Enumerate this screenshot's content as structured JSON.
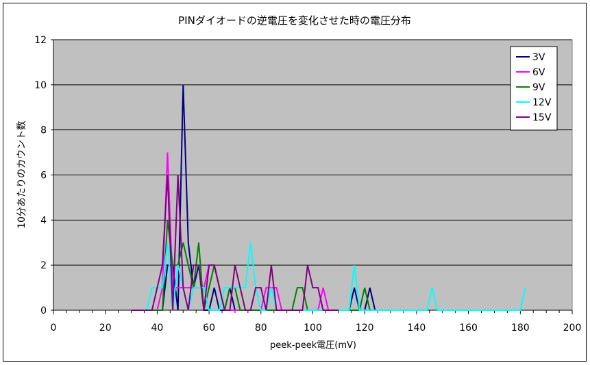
{
  "chart_data": {
    "type": "line",
    "title": "PINダイオードの逆電圧を変化させた時の電圧分布",
    "xlabel": "peek-peek電圧(mV)",
    "ylabel": "10分あたりのカウント数",
    "xlim": [
      0,
      200
    ],
    "ylim": [
      0,
      12
    ],
    "xticks": [
      0,
      20,
      40,
      60,
      80,
      100,
      120,
      140,
      160,
      180,
      200
    ],
    "yticks": [
      0,
      2,
      4,
      6,
      8,
      10,
      12
    ],
    "grid": "horizontal",
    "legend_position": "top-right",
    "plot_background": "#c0c0c0",
    "series": [
      {
        "name": "3V",
        "color": "#000080",
        "x": [
          30,
          32,
          34,
          36,
          38,
          40,
          42,
          44,
          46,
          48,
          50,
          52,
          54,
          56,
          58,
          60,
          62,
          64,
          66,
          68,
          70,
          72,
          74,
          76,
          78,
          80,
          82,
          84,
          86,
          88,
          90,
          92,
          94,
          96,
          98,
          100,
          102,
          104,
          106,
          108,
          110,
          112,
          114,
          116,
          118,
          120,
          122,
          124,
          126,
          128,
          130
        ],
        "y": [
          0,
          0,
          0,
          0,
          0,
          0,
          0,
          2,
          2,
          0,
          10,
          3,
          1,
          2,
          0,
          0,
          1,
          0,
          0,
          1,
          0,
          0,
          0,
          0,
          0,
          0,
          0,
          0,
          0,
          0,
          0,
          0,
          0,
          0,
          0,
          0,
          0,
          0,
          0,
          0,
          0,
          0,
          0,
          1,
          0,
          0,
          1,
          0,
          0,
          0,
          0
        ]
      },
      {
        "name": "6V",
        "color": "#ff00ff",
        "x": [
          30,
          32,
          34,
          36,
          38,
          40,
          42,
          44,
          46,
          48,
          50,
          52,
          54,
          56,
          58,
          60,
          62,
          64,
          66,
          68,
          70,
          72,
          74,
          76,
          78,
          80,
          82,
          84,
          86,
          88,
          90,
          92,
          94,
          96,
          98,
          100,
          102,
          104,
          106,
          108,
          110
        ],
        "y": [
          0,
          0,
          0,
          0,
          0,
          0,
          1,
          7,
          1,
          1,
          1,
          1,
          1,
          1,
          1,
          2,
          2,
          1,
          0,
          0,
          0,
          0,
          0,
          0,
          0,
          0,
          1,
          1,
          1,
          0,
          0,
          0,
          0,
          0,
          0,
          0,
          0,
          1,
          0,
          0,
          0
        ]
      },
      {
        "name": "9V",
        "color": "#008000",
        "x": [
          30,
          32,
          34,
          36,
          38,
          40,
          42,
          44,
          46,
          48,
          50,
          52,
          54,
          56,
          58,
          60,
          62,
          64,
          66,
          68,
          70,
          72,
          74,
          76,
          78,
          80,
          82,
          84,
          86,
          88,
          90,
          92,
          94,
          96,
          98,
          100,
          102,
          104,
          106,
          108,
          110,
          112,
          114,
          116,
          118,
          120,
          122,
          124,
          126
        ],
        "y": [
          0,
          0,
          0,
          0,
          0,
          0,
          0,
          4,
          2,
          2,
          3,
          2,
          1,
          3,
          0,
          1,
          2,
          1,
          0,
          1,
          1,
          0,
          0,
          0,
          0,
          0,
          0,
          0,
          0,
          0,
          0,
          0,
          1,
          1,
          0,
          0,
          0,
          0,
          0,
          0,
          0,
          0,
          0,
          0,
          0,
          1,
          0,
          0,
          0
        ]
      },
      {
        "name": "12V",
        "color": "#00ffff",
        "x": [
          30,
          32,
          34,
          36,
          38,
          40,
          42,
          44,
          46,
          48,
          50,
          52,
          54,
          56,
          58,
          60,
          62,
          64,
          66,
          68,
          70,
          72,
          74,
          76,
          78,
          80,
          82,
          84,
          86,
          88,
          90,
          92,
          94,
          96,
          98,
          100,
          102,
          104,
          106,
          108,
          110,
          112,
          114,
          116,
          118,
          120,
          122,
          124,
          126,
          128,
          130,
          132,
          134,
          136,
          138,
          140,
          142,
          144,
          146,
          148,
          150,
          152,
          154,
          156,
          158,
          160,
          162,
          164,
          166,
          168,
          170,
          172,
          174,
          176,
          178,
          180,
          182
        ],
        "y": [
          0,
          0,
          0,
          0,
          1,
          1,
          1,
          3,
          0,
          2,
          1,
          0,
          1,
          1,
          1,
          0,
          0,
          0,
          1,
          1,
          1,
          1,
          1,
          3,
          1,
          0,
          0,
          1,
          0,
          0,
          0,
          0,
          0,
          0,
          0,
          0,
          0,
          0,
          0,
          0,
          0,
          0,
          0,
          2,
          0,
          0,
          0,
          0,
          0,
          0,
          0,
          0,
          0,
          0,
          0,
          0,
          0,
          0,
          1,
          0,
          0,
          0,
          0,
          0,
          0,
          0,
          0,
          0,
          0,
          0,
          0,
          0,
          0,
          0,
          0,
          0,
          1
        ]
      },
      {
        "name": "15V",
        "color": "#800080",
        "x": [
          30,
          32,
          34,
          36,
          38,
          40,
          42,
          44,
          46,
          48,
          50,
          52,
          54,
          56,
          58,
          60,
          62,
          64,
          66,
          68,
          70,
          72,
          74,
          76,
          78,
          80,
          82,
          84,
          86,
          88,
          90,
          92,
          94,
          96,
          98,
          100,
          102,
          104,
          106,
          108,
          110
        ],
        "y": [
          0,
          0,
          0,
          0,
          0,
          1,
          2,
          6,
          0,
          6,
          1,
          0,
          2,
          2,
          0,
          2,
          2,
          1,
          0,
          0,
          2,
          1,
          0,
          0,
          1,
          1,
          0,
          2,
          0,
          0,
          0,
          0,
          0,
          0,
          2,
          1,
          1,
          0,
          0,
          0,
          0
        ]
      }
    ]
  }
}
